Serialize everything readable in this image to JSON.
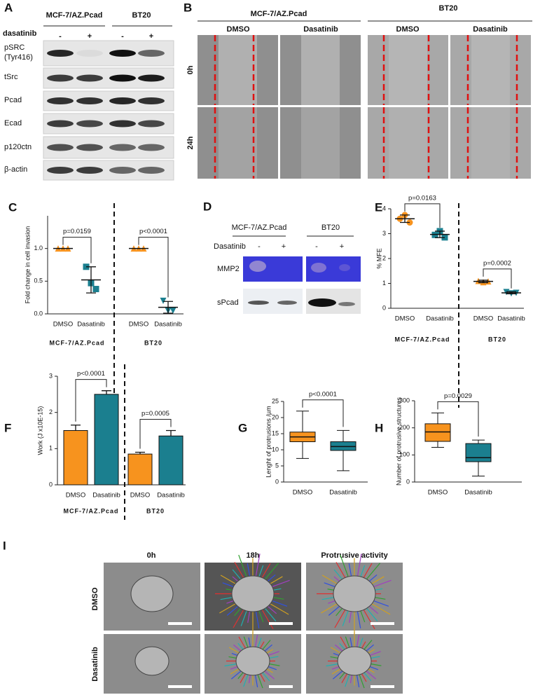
{
  "panels": {
    "A": {
      "letter": "A",
      "groups": [
        "MCF-7/AZ.Pcad",
        "BT20"
      ],
      "treatment": "dasatinib",
      "conditions": [
        "-",
        "+",
        "-",
        "+"
      ],
      "rows": [
        [
          "pSRC",
          "(Tyr416)"
        ],
        [
          "tSrc"
        ],
        [
          "Pcad"
        ],
        [
          "Ecad"
        ],
        [
          "p120ctn"
        ],
        [
          "β-actin"
        ]
      ]
    },
    "B": {
      "letter": "B",
      "groups": [
        "MCF-7/AZ.Pcad",
        "BT20"
      ],
      "conditions": [
        "DMSO",
        "Dasatinib",
        "DMSO",
        "Dasatinib"
      ],
      "times": [
        "0h",
        "24h"
      ]
    },
    "D": {
      "letter": "D",
      "groups": [
        "MCF-7/AZ.Pcad",
        "BT20"
      ],
      "treatment": "Dasatinib",
      "conditions": [
        "-",
        "+",
        "-",
        "+"
      ],
      "rows": [
        "MMP2",
        "sPcad"
      ]
    },
    "I": {
      "letter": "I",
      "columns": [
        "0h",
        "18h",
        "Protrusive activity"
      ],
      "rows": [
        "DMSO",
        "Dasatinib"
      ]
    }
  },
  "chart_data": [
    {
      "panel": "C",
      "type": "dot",
      "ylabel": "Fold change in cell invasion",
      "categories": [
        "DMSO",
        "Dasatinib",
        "DMSO",
        "Dasatinib"
      ],
      "groups": [
        "MCF-7/AZ.Pcad",
        "BT20"
      ],
      "points": [
        [
          1,
          1,
          1
        ],
        [
          0.72,
          0.47,
          0.38
        ],
        [
          1,
          1,
          1
        ],
        [
          0.2,
          0.05,
          0.05
        ]
      ],
      "means": [
        1,
        0.52,
        1,
        0.1
      ],
      "errors": [
        0,
        0.2,
        0,
        0.09
      ],
      "colors": [
        "#f7931e",
        "#1b7f8f",
        "#f7931e",
        "#1b7f8f"
      ],
      "markers": [
        "triangle",
        "square",
        "triangle",
        "triangle-down"
      ],
      "annotations": [
        "p=0.0159",
        "p<0.0001"
      ],
      "ylim": [
        0,
        1.5
      ],
      "yticks": [
        {
          "value": 0,
          "label": "0.0"
        },
        0.5,
        {
          "value": 1,
          "label": "1.0"
        }
      ]
    },
    {
      "panel": "E",
      "type": "dot",
      "ylabel": "% MFE",
      "categories": [
        "DMSO",
        "Dasatinib",
        "DMSO",
        "Dasatinib"
      ],
      "groups": [
        "MCF-7/AZ.Pcad",
        "BT20"
      ],
      "points": [
        [
          3.6,
          3.75,
          3.45
        ],
        [
          2.95,
          3.1,
          2.85
        ],
        [
          1.1,
          1.05,
          1.08
        ],
        [
          0.65,
          0.6,
          0.62
        ]
      ],
      "means": [
        3.6,
        2.97,
        1.08,
        0.62
      ],
      "errors": [
        0.15,
        0.13,
        0.05,
        0.04
      ],
      "colors": [
        "#f7931e",
        "#1b7f8f",
        "#f7931e",
        "#1b7f8f"
      ],
      "markers": [
        "circle",
        "square",
        "triangle",
        "triangle-down"
      ],
      "annotations": [
        "p=0.0163",
        "p=0.0002"
      ],
      "ylim": [
        0,
        4
      ],
      "yticks": [
        0,
        1,
        2,
        3,
        4
      ]
    },
    {
      "panel": "F",
      "type": "bar",
      "ylabel": "Work (J x10E-15)",
      "categories": [
        "DMSO",
        "Dasatinib",
        "DMSO",
        "Dasatinib"
      ],
      "groups": [
        "MCF-7/AZ.Pcad",
        "BT20"
      ],
      "values": [
        1.5,
        2.5,
        0.85,
        1.35
      ],
      "errors": [
        0.15,
        0.1,
        0.05,
        0.15
      ],
      "colors": [
        "#f7931e",
        "#1b7f8f",
        "#f7931e",
        "#1b7f8f"
      ],
      "annotations": [
        "p<0.0001",
        "p=0.0005"
      ],
      "ylim": [
        0,
        3
      ],
      "yticks": [
        0,
        1,
        2,
        3
      ]
    },
    {
      "panel": "G",
      "type": "box",
      "ylabel": "Lenght of protrusions /µm",
      "categories": [
        "DMSO",
        "Dasatinib"
      ],
      "min": [
        7.3,
        3.5
      ],
      "q1": [
        12.5,
        9.8
      ],
      "median": [
        14,
        11
      ],
      "q3": [
        15.5,
        12.5
      ],
      "max": [
        22,
        16
      ],
      "colors": [
        "#f7931e",
        "#1b7f8f"
      ],
      "annotations": [
        "p<0.0001"
      ],
      "ylim": [
        0,
        25
      ],
      "yticks": [
        0,
        5,
        10,
        15,
        20,
        25
      ]
    },
    {
      "panel": "H",
      "type": "box",
      "ylabel": "Number of protrusive structures",
      "categories": [
        "DMSO",
        "Dasatinib"
      ],
      "min": [
        128,
        22
      ],
      "q1": [
        150,
        75
      ],
      "median": [
        185,
        90
      ],
      "q3": [
        215,
        142
      ],
      "max": [
        255,
        155
      ],
      "colors": [
        "#f7931e",
        "#1b7f8f"
      ],
      "annotations": [
        "p=0.0029"
      ],
      "ylim": [
        0,
        300
      ],
      "yticks": [
        0,
        100,
        200,
        300
      ]
    }
  ]
}
